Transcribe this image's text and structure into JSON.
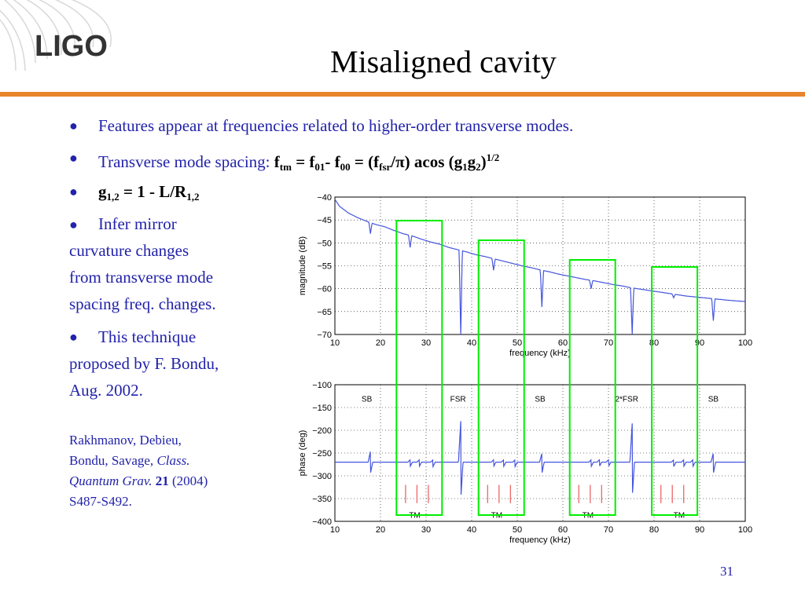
{
  "logo": {
    "text": "LIGO",
    "color": "#333333"
  },
  "title": "Misaligned cavity",
  "bullets": {
    "b1": "Features appear at frequencies related to higher-order transverse modes.",
    "b2_label": "Transverse mode spacing:",
    "b2_formula": {
      "f": "f",
      "tm": "tm",
      "eq1": " = f",
      "s01": "01",
      "dash": "- f",
      "s00": "00",
      "eq2": " = (f",
      "fsr": "fsr",
      "pi": "/π) acos (g",
      "g1": "1",
      "g": "g",
      "g2": "2",
      "close": ")",
      "exp": "1/2"
    },
    "b3": {
      "g": "g",
      "sub": "1,2",
      "mid": " = 1 - L/R",
      "sub2": "1,2"
    },
    "b4": [
      "Infer mirror",
      "curvature changes",
      "from transverse mode",
      "spacing freq. changes."
    ],
    "b5": [
      "This technique",
      "proposed by F. Bondu,",
      "Aug. 2002."
    ]
  },
  "reference": {
    "line1": "Rakhmanov, Debieu,",
    "line2a": "Bondu, Savage, ",
    "line2b": "Class.",
    "line3a": "Quantum Grav.",
    "line3b": " 21",
    "line3c": " (2004)",
    "line4": "S487-S492."
  },
  "page_number": "31",
  "colors": {
    "accent_rule": "#e8852c",
    "text_blue": "#2222aa",
    "trace": "#4455dd",
    "highlight": "#00ee00",
    "tm_lines": "#ee6666"
  },
  "chart_data": [
    {
      "type": "line",
      "title": "",
      "xlabel": "frequency (kHz)",
      "ylabel": "magnitude (dB)",
      "xlim": [
        10,
        100
      ],
      "ylim": [
        -70,
        -40
      ],
      "xticks": [
        10,
        20,
        30,
        40,
        50,
        60,
        70,
        80,
        90,
        100
      ],
      "yticks": [
        -40,
        -45,
        -50,
        -55,
        -60,
        -65,
        -70
      ],
      "grid": true,
      "x": [
        10,
        11,
        13,
        15,
        17,
        19,
        21,
        23,
        25,
        27,
        29,
        31,
        33,
        35,
        37,
        39,
        41,
        43,
        45,
        47,
        49,
        51,
        53,
        55,
        57,
        59,
        61,
        63,
        65,
        67,
        69,
        71,
        73,
        75,
        77,
        79,
        81,
        83,
        85,
        87,
        89,
        91,
        93,
        95,
        97,
        100
      ],
      "y": [
        -40.5,
        -42,
        -43.5,
        -44.5,
        -45.3,
        -46,
        -46.5,
        -47.3,
        -48,
        -48.5,
        -49.2,
        -49.8,
        -50.3,
        -51,
        -51.5,
        -52,
        -52.6,
        -53,
        -53.5,
        -54,
        -54.5,
        -55,
        -55.4,
        -55.9,
        -56.3,
        -56.8,
        -57.2,
        -57.6,
        -58,
        -58.3,
        -58.7,
        -59.1,
        -59.4,
        -59.8,
        -60.1,
        -60.4,
        -60.7,
        -61,
        -61.3,
        -61.6,
        -61.8,
        -62,
        -62.2,
        -62.4,
        -62.6,
        -62.8
      ],
      "features": [
        {
          "x": 17.8,
          "depth": -48,
          "kind": "SB"
        },
        {
          "x": 26.5,
          "depth": -51,
          "kind": "TM"
        },
        {
          "x": 37.6,
          "depth": -70,
          "kind": "FSR"
        },
        {
          "x": 44.8,
          "depth": -56,
          "kind": "TM"
        },
        {
          "x": 55.4,
          "depth": -64,
          "kind": "SB"
        },
        {
          "x": 66.2,
          "depth": -60,
          "kind": "TM"
        },
        {
          "x": 75.2,
          "depth": -70,
          "kind": "2FSR"
        },
        {
          "x": 84.3,
          "depth": -62,
          "kind": "TM"
        },
        {
          "x": 93,
          "depth": -67,
          "kind": "SB"
        }
      ],
      "highlight_boxes": [
        [
          23.5,
          33.5
        ],
        [
          41.5,
          51.5
        ],
        [
          61.5,
          71.5
        ],
        [
          79.5,
          89.5
        ]
      ]
    },
    {
      "type": "line",
      "title": "",
      "xlabel": "frequency (kHz)",
      "ylabel": "phase (deg)",
      "xlim": [
        10,
        100
      ],
      "ylim": [
        -400,
        -100
      ],
      "xticks": [
        10,
        20,
        30,
        40,
        50,
        60,
        70,
        80,
        90,
        100
      ],
      "yticks": [
        -100,
        -150,
        -200,
        -250,
        -300,
        -350,
        -400
      ],
      "grid": true,
      "baseline": -270,
      "features": [
        {
          "x": 17.8,
          "up": -245,
          "down": -295
        },
        {
          "x": 26.5,
          "up": -265,
          "down": -280
        },
        {
          "x": 28.5,
          "up": -265,
          "down": -280
        },
        {
          "x": 31.5,
          "up": -265,
          "down": -280
        },
        {
          "x": 37.6,
          "up": -180,
          "down": -355
        },
        {
          "x": 44.8,
          "up": -265,
          "down": -280
        },
        {
          "x": 47,
          "up": -265,
          "down": -280
        },
        {
          "x": 49.5,
          "up": -265,
          "down": -280
        },
        {
          "x": 55.4,
          "up": -250,
          "down": -295
        },
        {
          "x": 66.2,
          "up": -265,
          "down": -280
        },
        {
          "x": 68,
          "up": -265,
          "down": -280
        },
        {
          "x": 70,
          "up": -265,
          "down": -280
        },
        {
          "x": 75.2,
          "up": -185,
          "down": -350
        },
        {
          "x": 84.3,
          "up": -265,
          "down": -280
        },
        {
          "x": 86.5,
          "up": -265,
          "down": -280
        },
        {
          "x": 88.5,
          "up": -265,
          "down": -280
        },
        {
          "x": 93,
          "up": -250,
          "down": -295
        }
      ],
      "annotations": [
        {
          "text": "SB",
          "x": 17,
          "y": -130
        },
        {
          "text": "FSR",
          "x": 37,
          "y": -130
        },
        {
          "text": "SB",
          "x": 55,
          "y": -130
        },
        {
          "text": "2*FSR",
          "x": 74,
          "y": -130
        },
        {
          "text": "SB",
          "x": 93,
          "y": -130
        },
        {
          "text": "TM",
          "x": 27.5,
          "y": -385
        },
        {
          "text": "TM",
          "x": 45.5,
          "y": -385
        },
        {
          "text": "TM",
          "x": 65.5,
          "y": -385
        },
        {
          "text": "TM",
          "x": 85.5,
          "y": -385
        }
      ],
      "tm_lines": [
        25.5,
        28,
        30.5,
        43.5,
        46,
        48.5,
        63.5,
        66,
        68.5,
        81.5,
        84,
        86.5
      ],
      "highlight_boxes": [
        [
          23.5,
          33.5
        ],
        [
          41.5,
          51.5
        ],
        [
          61.5,
          71.5
        ],
        [
          79.5,
          89.5
        ]
      ]
    }
  ]
}
